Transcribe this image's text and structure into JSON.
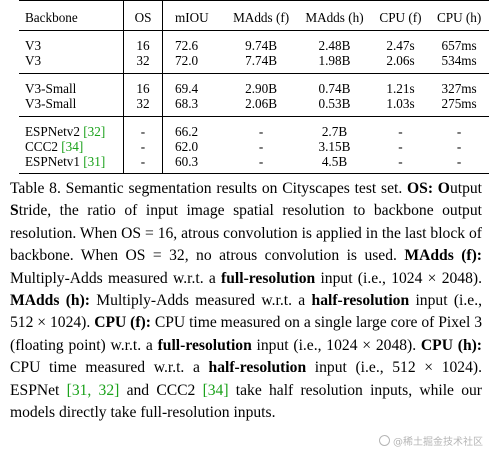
{
  "table": {
    "headers": [
      "Backbone",
      "OS",
      "mIOU",
      "MAdds (f)",
      "MAdds (h)",
      "CPU (f)",
      "CPU (h)"
    ],
    "groups": [
      {
        "rows": [
          {
            "backbone": "V3",
            "os": "16",
            "miou": "72.6",
            "madds_f": "9.74B",
            "madds_h": "2.48B",
            "cpu_f": "2.47s",
            "cpu_h": "657ms"
          },
          {
            "backbone": "V3",
            "os": "32",
            "miou": "72.0",
            "madds_f": "7.74B",
            "madds_h": "1.98B",
            "cpu_f": "2.06s",
            "cpu_h": "534ms"
          }
        ]
      },
      {
        "rows": [
          {
            "backbone": "V3-Small",
            "os": "16",
            "miou": "69.4",
            "madds_f": "2.90B",
            "madds_h": "0.74B",
            "cpu_f": "1.21s",
            "cpu_h": "327ms"
          },
          {
            "backbone": "V3-Small",
            "os": "32",
            "miou": "68.3",
            "madds_f": "2.06B",
            "madds_h": "0.53B",
            "cpu_f": "1.03s",
            "cpu_h": "275ms"
          }
        ]
      },
      {
        "rows": [
          {
            "backbone": "ESPNetv2",
            "cite": "[32]",
            "os": "-",
            "miou": "66.2",
            "madds_f": "-",
            "madds_h": "2.7B",
            "cpu_f": "-",
            "cpu_h": "-"
          },
          {
            "backbone": "CCC2",
            "cite": "[34]",
            "os": "-",
            "miou": "62.0",
            "madds_f": "-",
            "madds_h": "3.15B",
            "cpu_f": "-",
            "cpu_h": "-"
          },
          {
            "backbone": "ESPNetv1",
            "cite": "[31]",
            "os": "-",
            "miou": "60.3",
            "madds_f": "-",
            "madds_h": "4.5B",
            "cpu_f": "-",
            "cpu_h": "-"
          }
        ]
      }
    ]
  },
  "caption": {
    "t1": "Table 8. Semantic segmentation results on Cityscapes test set. ",
    "b1": "OS:",
    "t2": " ",
    "b2": "O",
    "t3": "utput ",
    "b3": "S",
    "t4": "tride, the ratio of input image spatial resolution to backbone output resolution. When OS = 16, atrous convolution is applied in the last block of backbone. When OS = 32, no atrous convolution is used. ",
    "b4": "MAdds (f):",
    "t5": " Multiply-Adds measured w.r.t. a ",
    "b5": "full-resolution",
    "t6": " input (i.e., 1024 × 2048). ",
    "b6": "MAdds (h):",
    "t7": " Multiply-Adds measured w.r.t. a ",
    "b7": "half-resolution",
    "t8": " input (i.e., 512 × 1024). ",
    "b8": "CPU (f):",
    "t9": " CPU time measured on a single large core of Pixel 3 (floating point) w.r.t. a ",
    "b9": "full-resolution",
    "t10": " input (i.e., 1024 × 2048). ",
    "b10": "CPU (h):",
    "t11": " CPU time measured w.r.t. a ",
    "b11": "half-resolution",
    "t12": " input (i.e., 512 × 1024). ESPNet ",
    "c1": "[31, 32]",
    "t13": " and CCC2 ",
    "c2": "[34]",
    "t14": " take half resolution inputs, while our models directly take full-resolution inputs."
  },
  "watermark": {
    "text": "@稀土掘金技术社区"
  },
  "colors": {
    "citation": "#1aa11a",
    "text": "#000000"
  }
}
